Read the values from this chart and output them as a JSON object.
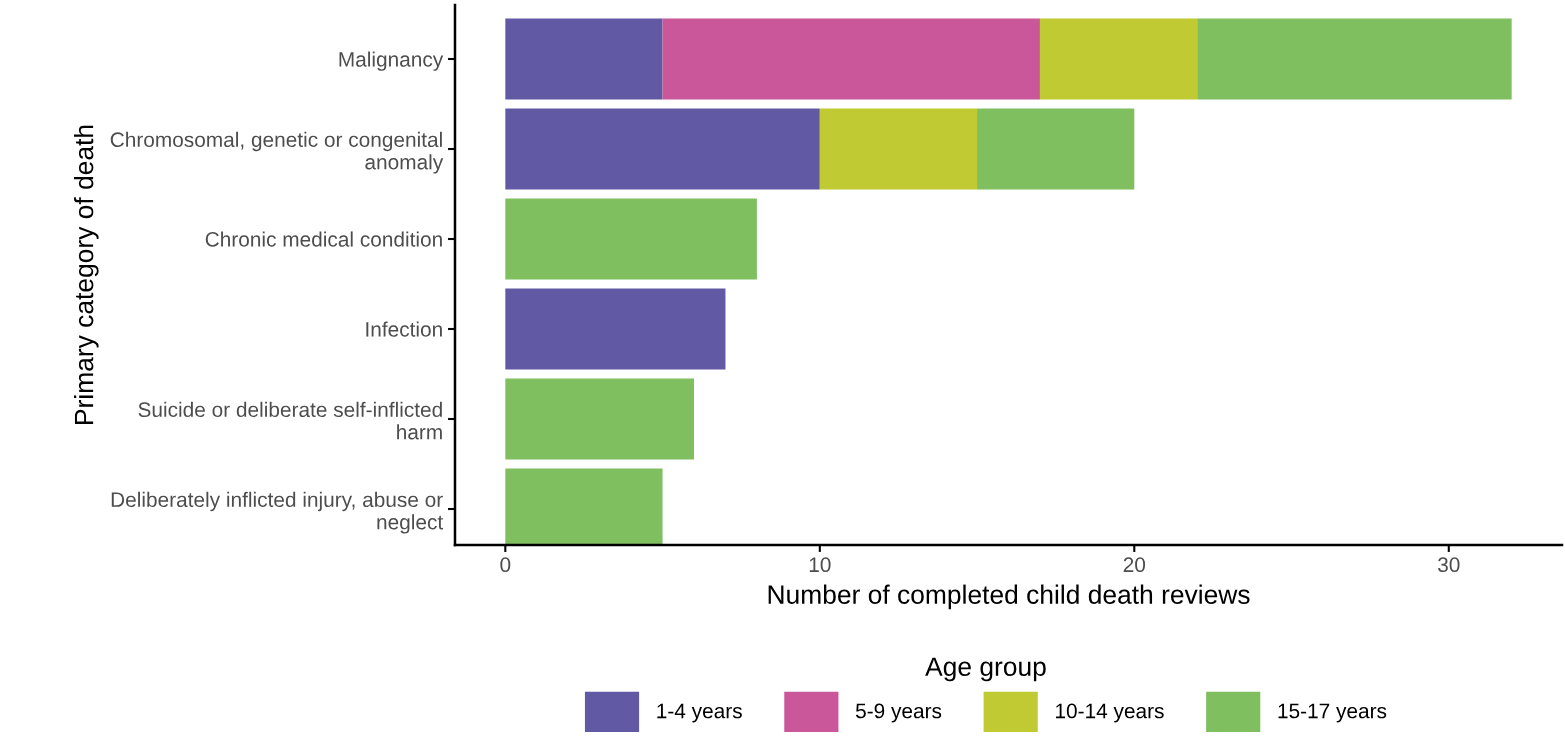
{
  "chart_data": {
    "type": "bar",
    "orientation": "horizontal",
    "stacked": true,
    "xlabel": "Number of completed child death reviews",
    "ylabel": "Primary category of death",
    "legend_title": "Age group",
    "categories": [
      "Malignancy",
      "Chromosomal, genetic or congenital\nanomaly",
      "Chronic medical condition",
      "Infection",
      "Suicide or deliberate self-inflicted\nharm",
      "Deliberately inflicted injury, abuse or\nneglect"
    ],
    "series": [
      {
        "name": "1-4 years",
        "color": "#6159a4",
        "values": [
          5,
          10,
          0,
          7,
          0,
          0
        ]
      },
      {
        "name": "5-9 years",
        "color": "#c9579a",
        "values": [
          12,
          0,
          0,
          0,
          0,
          0
        ]
      },
      {
        "name": "10-14 years",
        "color": "#c0ca33",
        "values": [
          5,
          5,
          0,
          0,
          0,
          0
        ]
      },
      {
        "name": "15-17 years",
        "color": "#7fbf5f",
        "values": [
          10,
          5,
          8,
          0,
          6,
          5
        ]
      }
    ],
    "xlim": [
      -1.6,
      33.6
    ],
    "xticks": [
      0,
      10,
      20,
      30
    ],
    "grid": false,
    "legend": "bottom"
  }
}
